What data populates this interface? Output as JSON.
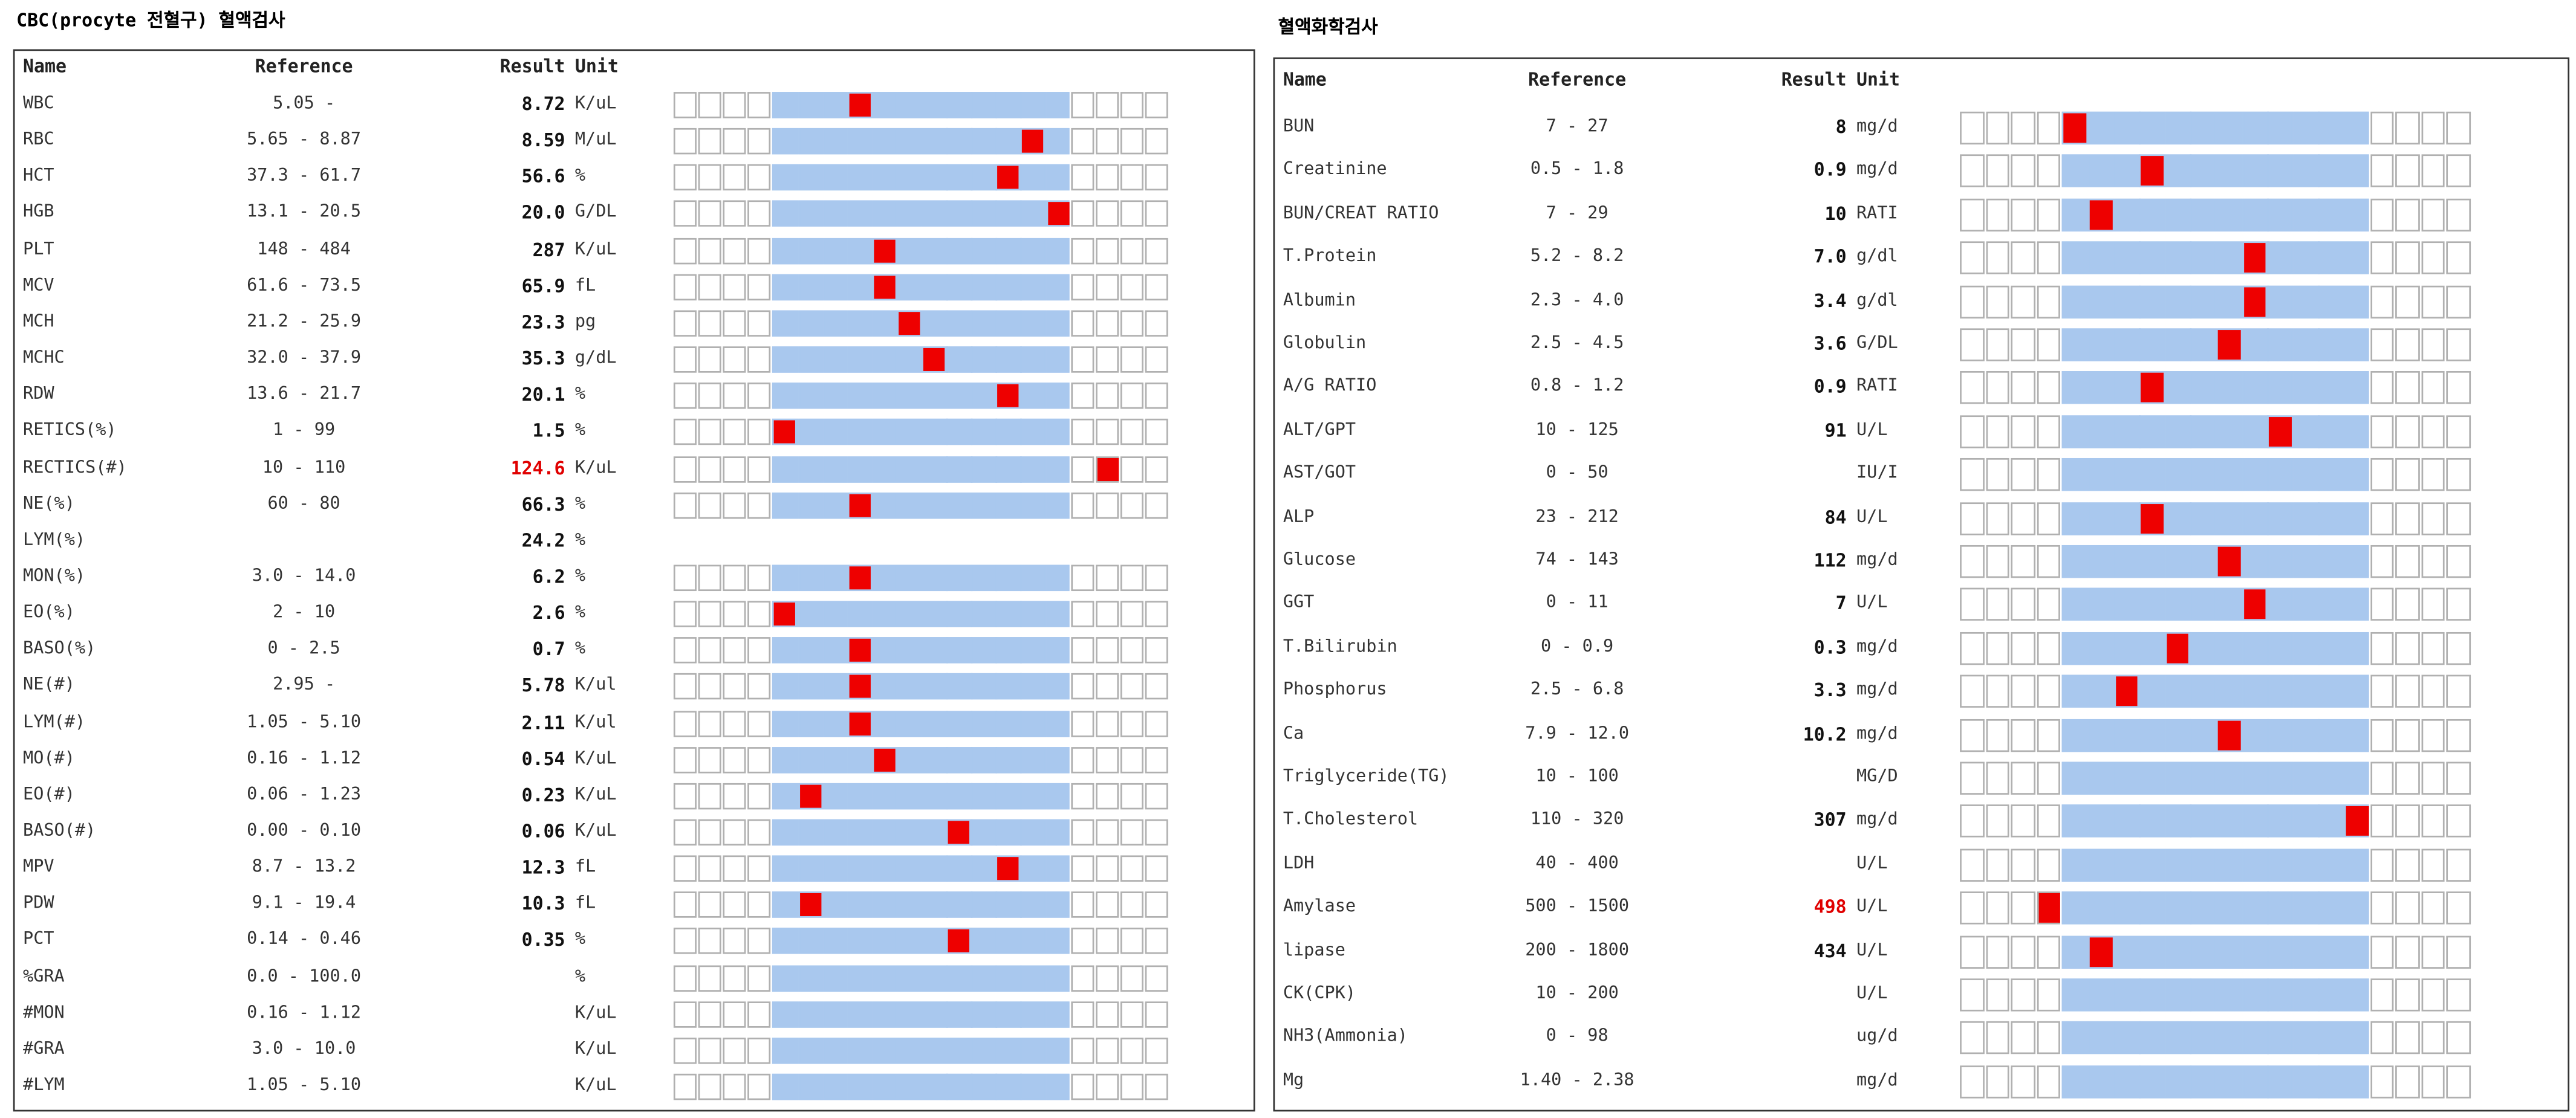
{
  "panels": [
    {
      "title": "CBC(procyte 전혈구) 혈액검사",
      "headers": {
        "name": "Name",
        "reference": "Reference",
        "result": "Result",
        "unit": "Unit"
      },
      "rows": [
        {
          "name": "WBC",
          "reference": "5.05 -",
          "result": "8.72",
          "unit": "K/uL",
          "marker": 7
        },
        {
          "name": "RBC",
          "reference": "5.65 - 8.87",
          "result": "8.59",
          "unit": "M/uL",
          "marker": 14
        },
        {
          "name": "HCT",
          "reference": "37.3 - 61.7",
          "result": "56.6",
          "unit": "%",
          "marker": 13
        },
        {
          "name": "HGB",
          "reference": "13.1 - 20.5",
          "result": "20.0",
          "unit": "G/DL",
          "marker": 15
        },
        {
          "name": "PLT",
          "reference": "148 - 484",
          "result": "287",
          "unit": "K/uL",
          "marker": 8
        },
        {
          "name": "MCV",
          "reference": "61.6 - 73.5",
          "result": "65.9",
          "unit": "fL",
          "marker": 8
        },
        {
          "name": "MCH",
          "reference": "21.2 - 25.9",
          "result": "23.3",
          "unit": "pg",
          "marker": 9
        },
        {
          "name": "MCHC",
          "reference": "32.0 - 37.9",
          "result": "35.3",
          "unit": "g/dL",
          "marker": 10
        },
        {
          "name": "RDW",
          "reference": "13.6 - 21.7",
          "result": "20.1",
          "unit": "%",
          "marker": 13
        },
        {
          "name": "RETICS(%)",
          "reference": "1 - 99",
          "result": "1.5",
          "unit": "%",
          "marker": 4
        },
        {
          "name": "RECTICS(#)",
          "reference": "10 - 110",
          "result": "124.6",
          "unit": "K/uL",
          "marker": 17,
          "flag": true
        },
        {
          "name": "NE(%)",
          "reference": "60 - 80",
          "result": "66.3",
          "unit": "%",
          "marker": 7
        },
        {
          "name": "LYM(%)",
          "reference": null,
          "result": "24.2",
          "unit": "%",
          "marker": null,
          "bar": false
        },
        {
          "name": "MON(%)",
          "reference": "3.0 - 14.0",
          "result": "6.2",
          "unit": "%",
          "marker": 7
        },
        {
          "name": "EO(%)",
          "reference": "2 - 10",
          "result": "2.6",
          "unit": "%",
          "marker": 4
        },
        {
          "name": "BASO(%)",
          "reference": "0 - 2.5",
          "result": "0.7",
          "unit": "%",
          "marker": 7
        },
        {
          "name": "NE(#)",
          "reference": "2.95 -",
          "result": "5.78",
          "unit": "K/ul",
          "marker": 7
        },
        {
          "name": "LYM(#)",
          "reference": "1.05 - 5.10",
          "result": "2.11",
          "unit": "K/ul",
          "marker": 7
        },
        {
          "name": "MO(#)",
          "reference": "0.16 - 1.12",
          "result": "0.54",
          "unit": "K/uL",
          "marker": 8
        },
        {
          "name": "EO(#)",
          "reference": "0.06 - 1.23",
          "result": "0.23",
          "unit": "K/uL",
          "marker": 5
        },
        {
          "name": "BASO(#)",
          "reference": "0.00 - 0.10",
          "result": "0.06",
          "unit": "K/uL",
          "marker": 11
        },
        {
          "name": "MPV",
          "reference": "8.7 - 13.2",
          "result": "12.3",
          "unit": "fL",
          "marker": 13
        },
        {
          "name": "PDW",
          "reference": "9.1 - 19.4",
          "result": "10.3",
          "unit": "fL",
          "marker": 5
        },
        {
          "name": "PCT",
          "reference": "0.14 - 0.46",
          "result": "0.35",
          "unit": "%",
          "marker": 11
        },
        {
          "name": "%GRA",
          "reference": "0.0 - 100.0",
          "result": null,
          "unit": "%",
          "marker": null
        },
        {
          "name": "#MON",
          "reference": "0.16 - 1.12",
          "result": null,
          "unit": "K/uL",
          "marker": null
        },
        {
          "name": "#GRA",
          "reference": "3.0 - 10.0",
          "result": null,
          "unit": "K/uL",
          "marker": null
        },
        {
          "name": "#LYM",
          "reference": "1.05 - 5.10",
          "result": null,
          "unit": "K/uL",
          "marker": null
        }
      ]
    },
    {
      "title": "혈액화학검사",
      "headers": {
        "name": "Name",
        "reference": "Reference",
        "result": "Result",
        "unit": "Unit"
      },
      "rows": [
        {
          "name": "BUN",
          "reference": "7 - 27",
          "result": "8",
          "unit": "mg/d",
          "marker": 4
        },
        {
          "name": "Creatinine",
          "reference": "0.5 - 1.8",
          "result": "0.9",
          "unit": "mg/d",
          "marker": 7
        },
        {
          "name": "BUN/CREAT RATIO",
          "reference": "7 - 29",
          "result": "10",
          "unit": "RATI",
          "marker": 5
        },
        {
          "name": "T.Protein",
          "reference": "5.2 - 8.2",
          "result": "7.0",
          "unit": "g/dl",
          "marker": 11
        },
        {
          "name": "Albumin",
          "reference": "2.3 - 4.0",
          "result": "3.4",
          "unit": "g/dl",
          "marker": 11
        },
        {
          "name": "Globulin",
          "reference": "2.5 - 4.5",
          "result": "3.6",
          "unit": "G/DL",
          "marker": 10
        },
        {
          "name": "A/G RATIO",
          "reference": "0.8 - 1.2",
          "result": "0.9",
          "unit": "RATI",
          "marker": 7
        },
        {
          "name": "ALT/GPT",
          "reference": "10 - 125",
          "result": "91",
          "unit": "U/L",
          "marker": 12
        },
        {
          "name": "AST/GOT",
          "reference": "0 - 50",
          "result": null,
          "unit": "IU/I",
          "marker": null
        },
        {
          "name": "ALP",
          "reference": "23 - 212",
          "result": "84",
          "unit": "U/L",
          "marker": 7
        },
        {
          "name": "Glucose",
          "reference": "74 - 143",
          "result": "112",
          "unit": "mg/d",
          "marker": 10
        },
        {
          "name": "GGT",
          "reference": "0 - 11",
          "result": "7",
          "unit": "U/L",
          "marker": 11
        },
        {
          "name": "T.Bilirubin",
          "reference": "0 - 0.9",
          "result": "0.3",
          "unit": "mg/d",
          "marker": 8
        },
        {
          "name": "Phosphorus",
          "reference": "2.5 - 6.8",
          "result": "3.3",
          "unit": "mg/d",
          "marker": 6
        },
        {
          "name": "Ca",
          "reference": "7.9 - 12.0",
          "result": "10.2",
          "unit": "mg/d",
          "marker": 10
        },
        {
          "name": "Triglyceride(TG)",
          "reference": "10 - 100",
          "result": null,
          "unit": "MG/D",
          "marker": null
        },
        {
          "name": "T.Cholesterol",
          "reference": "110 - 320",
          "result": "307",
          "unit": "mg/d",
          "marker": 15
        },
        {
          "name": "LDH",
          "reference": "40 - 400",
          "result": null,
          "unit": "U/L",
          "marker": null
        },
        {
          "name": "Amylase",
          "reference": "500 - 1500",
          "result": "498",
          "unit": "U/L",
          "marker": 3,
          "flag": true
        },
        {
          "name": "lipase",
          "reference": "200 - 1800",
          "result": "434",
          "unit": "U/L",
          "marker": 5
        },
        {
          "name": "CK(CPK)",
          "reference": "10 - 200",
          "result": null,
          "unit": "U/L",
          "marker": null
        },
        {
          "name": "NH3(Ammonia)",
          "reference": "0 - 98",
          "result": null,
          "unit": "ug/d",
          "marker": null
        },
        {
          "name": "Mg",
          "reference": "1.40 - 2.38",
          "result": null,
          "unit": "mg/d",
          "marker": null
        }
      ]
    }
  ]
}
